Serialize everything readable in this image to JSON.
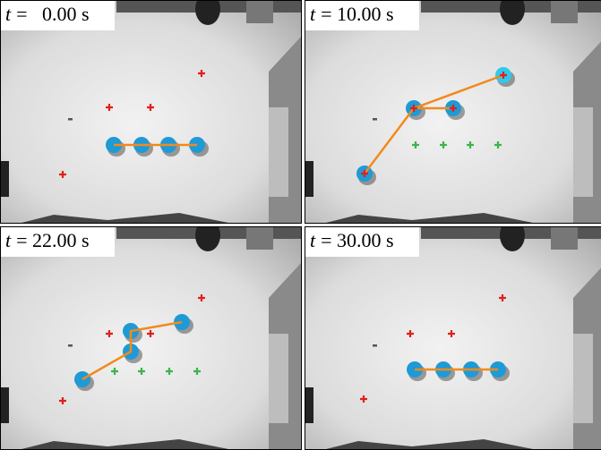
{
  "panels": [
    {
      "symbol": "t",
      "label": "=   0.00 s"
    },
    {
      "symbol": "t",
      "label": "= 10.00 s"
    },
    {
      "symbol": "t",
      "label": "= 22.00 s"
    },
    {
      "symbol": "t",
      "label": "= 30.00 s"
    }
  ]
}
